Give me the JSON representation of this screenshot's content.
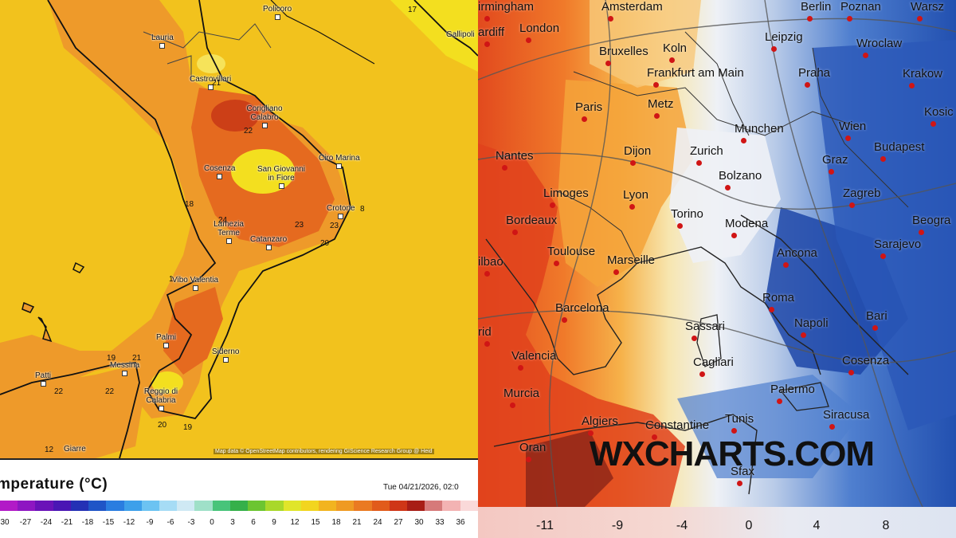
{
  "left_map": {
    "colors": {
      "base": "#f2c21d",
      "warm": "#ee9a2a",
      "hot": "#e56a1f",
      "hottest": "#cc3f17",
      "cool": "#f3df1f"
    },
    "places": [
      {
        "name": "Policoro"
      },
      {
        "name": "Lauria"
      },
      {
        "name": "Castrovillari"
      },
      {
        "name": "Corigliano Calabro"
      },
      {
        "name": "Cosenza"
      },
      {
        "name": "San Giovanni in Fiore"
      },
      {
        "name": "Ciro Marina"
      },
      {
        "name": "Crotone"
      },
      {
        "name": "Lamezia Terme"
      },
      {
        "name": "Catanzaro"
      },
      {
        "name": "Vibo Valentia"
      },
      {
        "name": "Palmi"
      },
      {
        "name": "Siderno"
      },
      {
        "name": "Messina"
      },
      {
        "name": "Patti"
      },
      {
        "name": "Reggio di Calabria"
      },
      {
        "name": "Giarre"
      },
      {
        "name": "Gallipoli"
      }
    ],
    "values": [
      "17",
      "21",
      "22",
      "18",
      "24",
      "23",
      "8",
      "23",
      "20",
      "1",
      "19",
      "21",
      "22",
      "22",
      "20",
      "19",
      "12"
    ],
    "credit": "Map data © OpenStreetMap contributors, rendering GIScience Research Group @ Heid"
  },
  "legend": {
    "title": "mperature (°C)",
    "datetime": "Tue 04/21/2026, 02:0",
    "colors": [
      "#b21ac7",
      "#8e16c2",
      "#6a12b8",
      "#4a16b4",
      "#2431b5",
      "#1f55c7",
      "#2a7de0",
      "#3da0ea",
      "#6cc3f2",
      "#a6dcf5",
      "#cfe9f4",
      "#9fe0c8",
      "#48c47a",
      "#36b04a",
      "#6cc531",
      "#a9d82a",
      "#e0e52a",
      "#f2d51f",
      "#f2b41f",
      "#ef9a23",
      "#ea7a22",
      "#e15b1b",
      "#cf3617",
      "#a81d16",
      "#d67a7a",
      "#f3b3b3",
      "#fad9d9"
    ],
    "ticks": [
      "30",
      "-27",
      "-24",
      "-21",
      "-18",
      "-15",
      "-12",
      "-9",
      "-6",
      "-3",
      "0",
      "3",
      "6",
      "9",
      "12",
      "15",
      "18",
      "21",
      "24",
      "27",
      "30",
      "33",
      "36"
    ]
  },
  "right_map": {
    "colors": {
      "hot": "#e24a1e",
      "warm": "#f5a33a",
      "cool": "#f4f4f0",
      "cold": "#2b5fbf",
      "colder": "#1d47a8"
    },
    "cities": [
      "irmingham",
      "Amsterdam",
      "Berlin",
      "Poznan",
      "Warsz",
      "ardiff",
      "London",
      "Koln",
      "Leipzig",
      "Wroclaw",
      "Bruxelles",
      "Frankfurt am Main",
      "Praha",
      "Krakow",
      "Paris",
      "Metz",
      "Munchen",
      "Wien",
      "Kosic",
      "Nantes",
      "Dijon",
      "Zurich",
      "Graz",
      "Budapest",
      "Limoges",
      "Lyon",
      "Bolzano",
      "Zagreb",
      "Bordeaux",
      "Torino",
      "Modena",
      "Beogra",
      "Toulouse",
      "Marseille",
      "Ancona",
      "Sarajevo",
      "ilbao",
      "Barcelona",
      "Roma",
      "Sassari",
      "Napoli",
      "Bari",
      "Valencia",
      "Cagliari",
      "Cosenza",
      "Murcia",
      "Palermo",
      "Siracusa",
      "Algiers",
      "Constantine",
      "Tunis",
      "Oran",
      "Sfax",
      "rid"
    ],
    "watermark": "WXCHARTS.COM",
    "ticks": [
      "-11",
      "-9",
      "-4",
      "0",
      "4",
      "8"
    ]
  }
}
